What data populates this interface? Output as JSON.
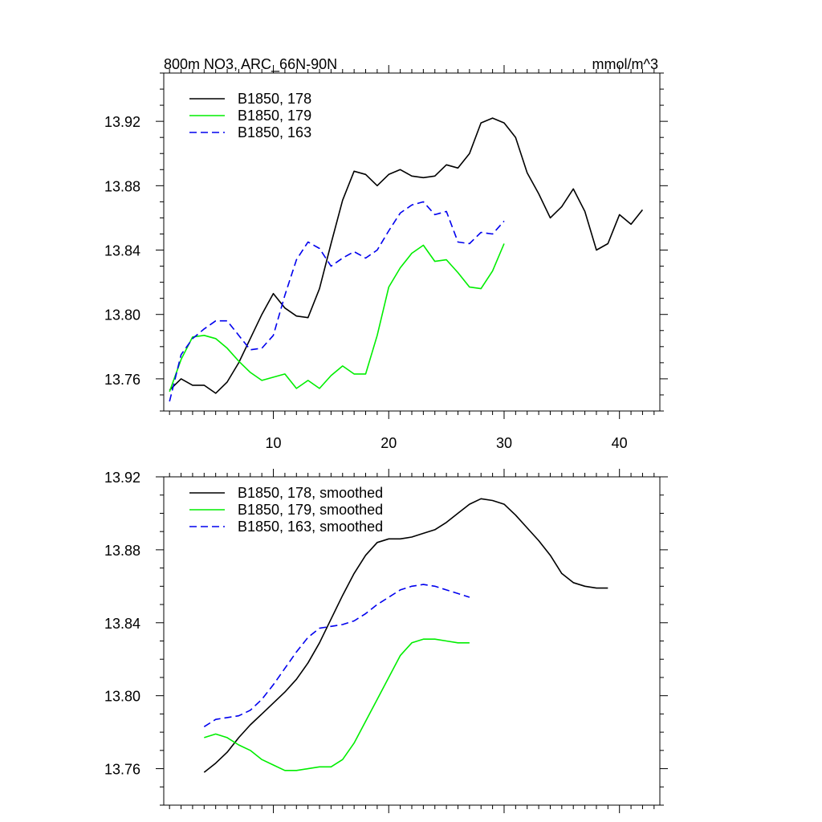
{
  "header": {
    "title": "800m NO3, ARC_66N-90N",
    "units": "mmol/m^3"
  },
  "chart_data": [
    {
      "type": "line",
      "panel": "top",
      "xlim": [
        0.5,
        43.5
      ],
      "ylim": [
        13.74,
        13.95
      ],
      "x_ticks": [
        10,
        20,
        30,
        40
      ],
      "x_tick_labels": [
        "10",
        "20",
        "30",
        "40"
      ],
      "y_ticks": [
        13.76,
        13.8,
        13.84,
        13.88,
        13.92
      ],
      "y_tick_labels": [
        "13.76",
        "13.80",
        "13.84",
        "13.88",
        "13.92"
      ],
      "legend_position": "top-left",
      "grid": false,
      "series": [
        {
          "name": "B1850, 178",
          "color": "#000000",
          "dash": "solid",
          "x": [
            1,
            2,
            3,
            4,
            5,
            6,
            7,
            8,
            9,
            10,
            11,
            12,
            13,
            14,
            15,
            16,
            17,
            18,
            19,
            20,
            21,
            22,
            23,
            24,
            25,
            26,
            27,
            28,
            29,
            30,
            31,
            32,
            33,
            34,
            35,
            36,
            37,
            38,
            39,
            40,
            41,
            42
          ],
          "y": [
            13.753,
            13.76,
            13.756,
            13.756,
            13.751,
            13.758,
            13.77,
            13.785,
            13.8,
            13.813,
            13.804,
            13.799,
            13.798,
            13.816,
            13.844,
            13.871,
            13.889,
            13.887,
            13.88,
            13.887,
            13.89,
            13.886,
            13.885,
            13.886,
            13.893,
            13.891,
            13.9,
            13.919,
            13.922,
            13.919,
            13.91,
            13.888,
            13.875,
            13.86,
            13.867,
            13.878,
            13.864,
            13.84,
            13.844,
            13.862,
            13.856,
            13.865
          ]
        },
        {
          "name": "B1850, 179",
          "color": "#00ee00",
          "dash": "solid",
          "x": [
            1,
            2,
            3,
            4,
            5,
            6,
            7,
            8,
            9,
            10,
            11,
            12,
            13,
            14,
            15,
            16,
            17,
            18,
            19,
            20,
            21,
            22,
            23,
            24,
            25,
            26,
            27,
            28,
            29,
            30
          ],
          "y": [
            13.752,
            13.772,
            13.786,
            13.787,
            13.785,
            13.779,
            13.771,
            13.764,
            13.759,
            13.761,
            13.763,
            13.754,
            13.759,
            13.754,
            13.762,
            13.768,
            13.763,
            13.763,
            13.787,
            13.817,
            13.829,
            13.838,
            13.843,
            13.833,
            13.834,
            13.826,
            13.817,
            13.816,
            13.827,
            13.844
          ]
        },
        {
          "name": "B1850, 163",
          "color": "#0000ee",
          "dash": "dashed",
          "x": [
            1,
            2,
            3,
            4,
            5,
            6,
            7,
            8,
            9,
            10,
            11,
            12,
            13,
            14,
            15,
            16,
            17,
            18,
            19,
            20,
            21,
            22,
            23,
            24,
            25,
            26,
            27,
            28,
            29,
            30
          ],
          "y": [
            13.746,
            13.775,
            13.785,
            13.791,
            13.796,
            13.796,
            13.787,
            13.778,
            13.779,
            13.787,
            13.812,
            13.834,
            13.845,
            13.841,
            13.83,
            13.835,
            13.839,
            13.835,
            13.84,
            13.852,
            13.863,
            13.868,
            13.87,
            13.862,
            13.864,
            13.845,
            13.844,
            13.851,
            13.85,
            13.858
          ]
        }
      ]
    },
    {
      "type": "line",
      "panel": "bottom",
      "xlim": [
        0.5,
        43.5
      ],
      "ylim": [
        13.74,
        13.92
      ],
      "x_ticks": [
        10,
        20,
        30,
        40
      ],
      "x_tick_labels": [
        "",
        "",
        "",
        ""
      ],
      "y_ticks": [
        13.76,
        13.8,
        13.84,
        13.88,
        13.92
      ],
      "y_tick_labels": [
        "13.76",
        "13.80",
        "13.84",
        "13.88",
        "13.92"
      ],
      "legend_position": "top-left",
      "grid": false,
      "series": [
        {
          "name": "B1850, 178, smoothed",
          "color": "#000000",
          "dash": "solid",
          "x": [
            4,
            5,
            6,
            7,
            8,
            9,
            10,
            11,
            12,
            13,
            14,
            15,
            16,
            17,
            18,
            19,
            20,
            21,
            22,
            23,
            24,
            25,
            26,
            27,
            28,
            29,
            30,
            31,
            32,
            33,
            34,
            35,
            36,
            37,
            38,
            39
          ],
          "y": [
            13.758,
            13.763,
            13.769,
            13.777,
            13.784,
            13.79,
            13.796,
            13.802,
            13.809,
            13.818,
            13.829,
            13.842,
            13.855,
            13.867,
            13.877,
            13.884,
            13.886,
            13.886,
            13.887,
            13.889,
            13.891,
            13.895,
            13.9,
            13.905,
            13.908,
            13.907,
            13.905,
            13.899,
            13.892,
            13.885,
            13.877,
            13.867,
            13.862,
            13.86,
            13.859,
            13.859
          ]
        },
        {
          "name": "B1850, 179, smoothed",
          "color": "#00ee00",
          "dash": "solid",
          "x": [
            4,
            5,
            6,
            7,
            8,
            9,
            10,
            11,
            12,
            13,
            14,
            15,
            16,
            17,
            18,
            19,
            20,
            21,
            22,
            23,
            24,
            25,
            26,
            27
          ],
          "y": [
            13.777,
            13.779,
            13.777,
            13.773,
            13.77,
            13.765,
            13.762,
            13.759,
            13.759,
            13.76,
            13.761,
            13.761,
            13.765,
            13.774,
            13.786,
            13.798,
            13.81,
            13.822,
            13.829,
            13.831,
            13.831,
            13.83,
            13.829,
            13.829
          ]
        },
        {
          "name": "B1850, 163, smoothed",
          "color": "#0000ee",
          "dash": "dashed",
          "x": [
            4,
            5,
            6,
            7,
            8,
            9,
            10,
            11,
            12,
            13,
            14,
            15,
            16,
            17,
            18,
            19,
            20,
            21,
            22,
            23,
            24,
            25,
            26,
            27
          ],
          "y": [
            13.783,
            13.787,
            13.788,
            13.789,
            13.792,
            13.798,
            13.806,
            13.815,
            13.824,
            13.832,
            13.837,
            13.838,
            13.839,
            13.841,
            13.845,
            13.85,
            13.854,
            13.858,
            13.86,
            13.861,
            13.86,
            13.858,
            13.856,
            13.854
          ]
        }
      ]
    }
  ]
}
